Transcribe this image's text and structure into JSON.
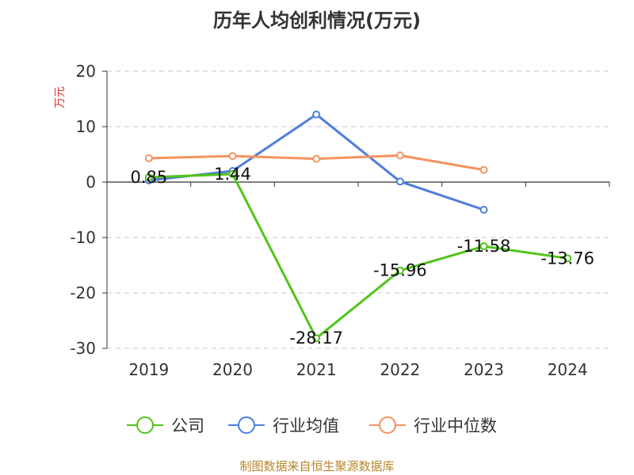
{
  "chart_data": {
    "type": "line",
    "title": "历年人均创利情况(万元)",
    "ylabel": "万元",
    "categories": [
      "2019",
      "2020",
      "2021",
      "2022",
      "2023",
      "2024"
    ],
    "ylim": [
      -30,
      20
    ],
    "yticks": [
      20,
      10,
      0,
      -10,
      -20,
      -30
    ],
    "grid": true,
    "legend_position": "bottom",
    "series": [
      {
        "name": "公司",
        "values": [
          0.85,
          1.44,
          -28.17,
          -15.96,
          -11.58,
          -13.76
        ],
        "color": "#52c41a",
        "labeled": true,
        "labels": [
          "0.85",
          "1.44",
          "-28.17",
          "-15.96",
          "-11.58",
          "-13.76"
        ]
      },
      {
        "name": "行业均值",
        "values": [
          0.3,
          2.0,
          12.2,
          0.1,
          -5.0,
          null
        ],
        "color": "#4e7fdc",
        "labeled": false
      },
      {
        "name": "行业中位数",
        "values": [
          4.3,
          4.7,
          4.2,
          4.8,
          2.2,
          null
        ],
        "color": "#f59260",
        "labeled": false
      }
    ]
  },
  "source": "制图数据来自恒生聚源数据库"
}
